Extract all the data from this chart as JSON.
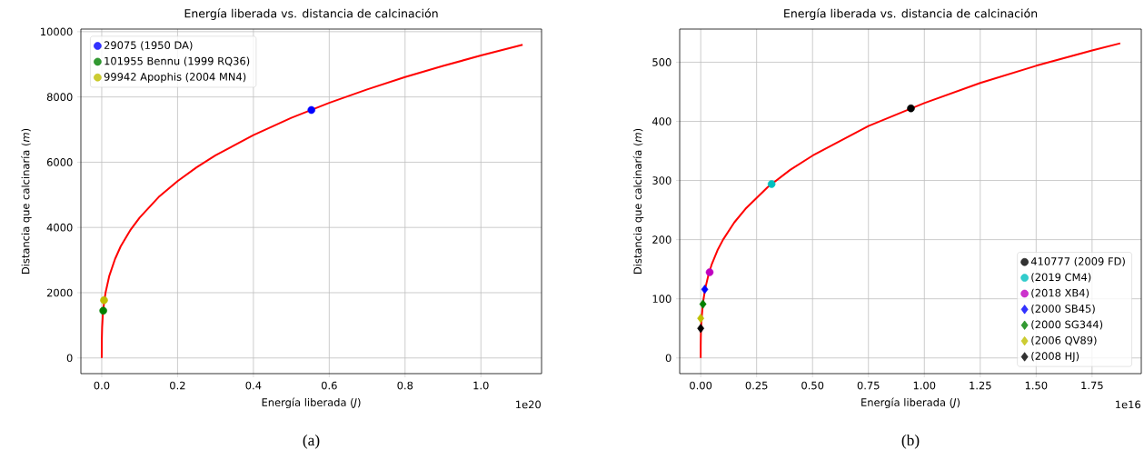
{
  "chart_data": [
    {
      "type": "line",
      "title": "Energía liberada vs. distancia de calcinación",
      "xlabel": "Energía liberada (*J*)",
      "ylabel": "Distancia que calcinaría (*m*)",
      "xlim": [
        -0.055,
        1.16
      ],
      "ylim": [
        -480,
        10080
      ],
      "xticks": [
        {
          "value": 0,
          "label": "0.0"
        },
        {
          "value": 0.2,
          "label": "0.2"
        },
        {
          "value": 0.4,
          "label": "0.4"
        },
        {
          "value": 0.6,
          "label": "0.6"
        },
        {
          "value": 0.8,
          "label": "0.8"
        },
        {
          "value": 1.0,
          "label": "1.0"
        }
      ],
      "yticks": [
        0,
        2000,
        4000,
        6000,
        8000,
        10000
      ],
      "grid": true,
      "legend": "top left",
      "annotations": [
        "1e20",
        "(a)"
      ],
      "series": [
        {
          "color": "#ff0000",
          "marker": "none",
          "x": [
            0,
            0.0002,
            0.001,
            0.003,
            0.006,
            0.01,
            0.02,
            0.035,
            0.05,
            0.075,
            0.1,
            0.15,
            0.2,
            0.25,
            0.3,
            0.4,
            0.5,
            0.6,
            0.7,
            0.8,
            0.9,
            1.0,
            1.11
          ],
          "values": [
            0,
            540,
            930,
            1340,
            1680,
            2000,
            2520,
            3030,
            3420,
            3910,
            4300,
            4930,
            5420,
            5840,
            6210,
            6830,
            7360,
            7820,
            8230,
            8610,
            8950,
            9270,
            9600
          ]
        },
        {
          "type": "scatter",
          "name": "29075 (1950 DA)",
          "color": "#0000ff",
          "marker": "circle",
          "x": [
            0.553
          ],
          "values": [
            7600
          ]
        },
        {
          "type": "scatter",
          "name": "101955 Bennu (1999 RQ36)",
          "color": "#008000",
          "marker": "circle",
          "x": [
            0.004
          ],
          "values": [
            1450
          ]
        },
        {
          "type": "scatter",
          "name": "99942 Apophis (2004 MN4)",
          "color": "#bfbf00",
          "marker": "circle",
          "x": [
            0.006
          ],
          "values": [
            1770
          ]
        }
      ]
    },
    {
      "type": "line",
      "title": "Energía liberada vs. distancia de calcinación",
      "xlabel": "Energía liberada (*J*)",
      "ylabel": "Distancia que calcinaría (*m*)",
      "xlim": [
        -0.094,
        1.97
      ],
      "ylim": [
        -26.5,
        556
      ],
      "xticks": [
        {
          "value": 0,
          "label": "0.00"
        },
        {
          "value": 0.25,
          "label": "0.25"
        },
        {
          "value": 0.5,
          "label": "0.50"
        },
        {
          "value": 0.75,
          "label": "0.75"
        },
        {
          "value": 1.0,
          "label": "1.00"
        },
        {
          "value": 1.25,
          "label": "1.25"
        },
        {
          "value": 1.5,
          "label": "1.50"
        },
        {
          "value": 1.75,
          "label": "1.75"
        }
      ],
      "yticks": [
        0,
        100,
        200,
        300,
        400,
        500
      ],
      "grid": true,
      "legend": "bottom right",
      "annotations": [
        "1e16",
        "(b)"
      ],
      "series": [
        {
          "color": "#ff0000",
          "marker": "none",
          "x": [
            0,
            0.0001,
            0.0005,
            0.001,
            0.003,
            0.01,
            0.02,
            0.035,
            0.05,
            0.075,
            0.1,
            0.15,
            0.2,
            0.3,
            0.4,
            0.5,
            0.75,
            1.0,
            1.25,
            1.5,
            1.75,
            1.876
          ],
          "values": [
            0,
            20,
            34,
            43,
            62,
            93,
            117,
            141,
            159,
            182,
            200,
            229,
            252,
            289,
            318,
            342,
            392,
            431,
            465,
            494,
            520,
            532
          ]
        },
        {
          "type": "scatter",
          "name": "410777 (2009 FD)",
          "color": "#000000",
          "marker": "circle",
          "x": [
            0.94
          ],
          "values": [
            422
          ]
        },
        {
          "type": "scatter",
          "name": "(2019 CM4)",
          "color": "#00bfbf",
          "marker": "circle",
          "x": [
            0.317
          ],
          "values": [
            294
          ]
        },
        {
          "type": "scatter",
          "name": "(2018 XB4)",
          "color": "#bf00bf",
          "marker": "circle",
          "x": [
            0.04
          ],
          "values": [
            145
          ]
        },
        {
          "type": "scatter",
          "name": "(2000 SB45)",
          "color": "#0000ff",
          "marker": "diamond",
          "x": [
            0.018
          ],
          "values": [
            116
          ]
        },
        {
          "type": "scatter",
          "name": "(2000 SG344)",
          "color": "#008000",
          "marker": "diamond",
          "x": [
            0.01
          ],
          "values": [
            91
          ]
        },
        {
          "type": "scatter",
          "name": "(2006 QV89)",
          "color": "#bfbf00",
          "marker": "diamond",
          "x": [
            0
          ],
          "values": [
            67
          ]
        },
        {
          "type": "scatter",
          "name": "(2008 HJ)",
          "color": "#000000",
          "marker": "diamond",
          "x": [
            0
          ],
          "values": [
            50
          ]
        }
      ]
    }
  ]
}
